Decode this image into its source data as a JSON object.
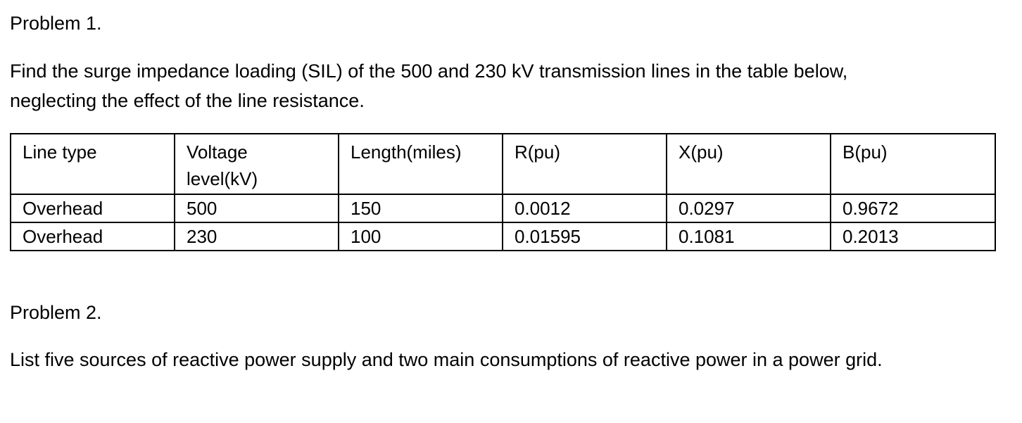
{
  "problem1": {
    "title": "Problem 1.",
    "line1": "Find the surge impedance loading (SIL) of the 500 and 230 kV transmission lines in the table below,",
    "line2": "neglecting the effect of the line resistance."
  },
  "table": {
    "headers": {
      "line_type": "Line type",
      "voltage_1": "Voltage",
      "voltage_2": "level(kV)",
      "length": "Length(miles)",
      "r": "R(pu)",
      "x": "X(pu)",
      "b": "B(pu)"
    },
    "rows": [
      {
        "line_type": "Overhead",
        "voltage": "500",
        "length": "150",
        "r": "0.0012",
        "x": "0.0297",
        "b": "0.9672"
      },
      {
        "line_type": "Overhead",
        "voltage": "230",
        "length": "100",
        "r": "0.01595",
        "x": "0.1081",
        "b": "0.2013"
      }
    ]
  },
  "problem2": {
    "title": "Problem 2.",
    "body": "List five sources of reactive power supply and two main consumptions of reactive power in a power grid."
  }
}
